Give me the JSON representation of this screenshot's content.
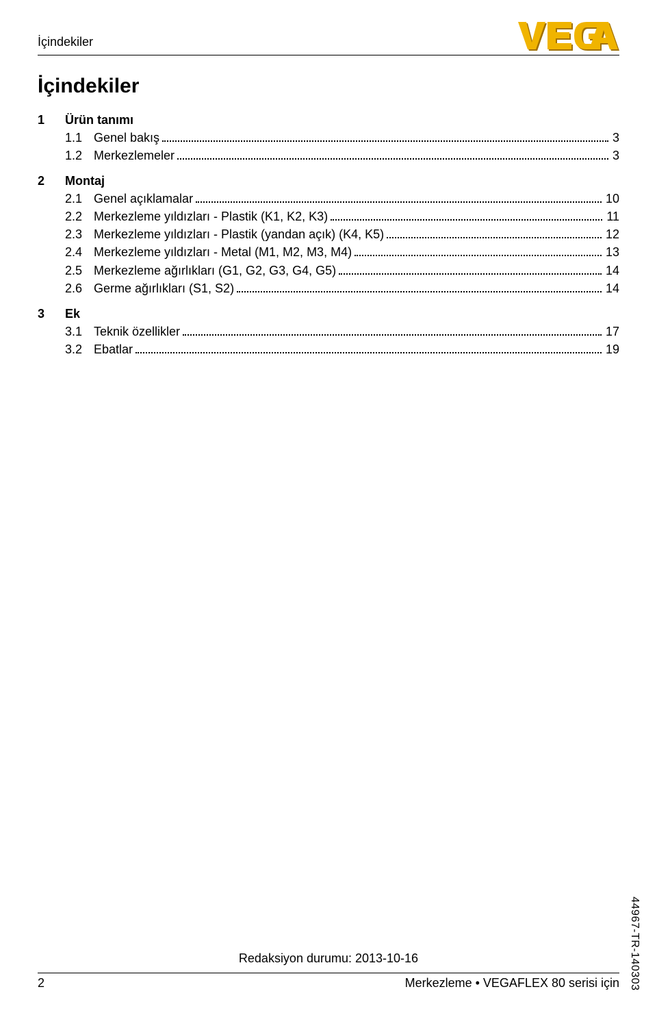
{
  "header": {
    "title": "İçindekiler",
    "logo_text": "VEGA",
    "logo_color": "#f0b400",
    "logo_shadow": "#a07000"
  },
  "main_heading": "İçindekiler",
  "sections": [
    {
      "num": "1",
      "title": "Ürün tanımı",
      "entries": [
        {
          "num": "1.1",
          "text": "Genel bakış",
          "page": "3"
        },
        {
          "num": "1.2",
          "text": "Merkezlemeler",
          "page": "3"
        }
      ]
    },
    {
      "num": "2",
      "title": "Montaj",
      "entries": [
        {
          "num": "2.1",
          "text": "Genel açıklamalar",
          "page": "10"
        },
        {
          "num": "2.2",
          "text": "Merkezleme yıldızları - Plastik (K1, K2, K3)",
          "page": "11"
        },
        {
          "num": "2.3",
          "text": "Merkezleme yıldızları - Plastik (yandan açık) (K4, K5)",
          "page": "12"
        },
        {
          "num": "2.4",
          "text": "Merkezleme yıldızları - Metal (M1, M2, M3, M4)",
          "page": "13"
        },
        {
          "num": "2.5",
          "text": "Merkezleme ağırlıkları (G1, G2, G3, G4, G5)",
          "page": "14"
        },
        {
          "num": "2.6",
          "text": "Germe ağırlıkları (S1, S2)",
          "page": "14"
        }
      ]
    },
    {
      "num": "3",
      "title": "Ek",
      "entries": [
        {
          "num": "3.1",
          "text": "Teknik özellikler",
          "page": "17"
        },
        {
          "num": "3.2",
          "text": "Ebatlar",
          "page": "19"
        }
      ]
    }
  ],
  "footer": {
    "revision": "Redaksiyon durumu: 2013-10-16",
    "page_number": "2",
    "right_text": "Merkezleme • VEGAFLEX 80 serisi için"
  },
  "side_code": "44967-TR-140303"
}
